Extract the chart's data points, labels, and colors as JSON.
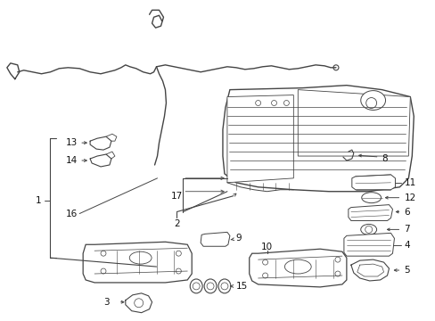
{
  "bg_color": "#ffffff",
  "line_color": "#444444",
  "text_color": "#111111",
  "fig_width": 4.89,
  "fig_height": 3.6,
  "dpi": 100
}
